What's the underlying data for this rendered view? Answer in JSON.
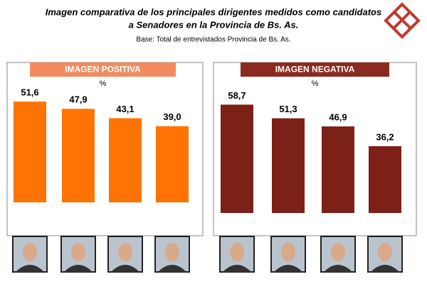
{
  "header": {
    "title": [
      "Imagen comparativa de los principales dirigentes medidos como candidatos",
      "a Senadores en la Provincia de Bs. As."
    ],
    "subtitle": "Base: Total de entrevistados Provincia de Bs. As."
  },
  "chart_data": [
    {
      "type": "bar",
      "title": "IMAGEN POSITIVA",
      "unit": "%",
      "categories": [
        null,
        null,
        null,
        null
      ],
      "values": [
        51.6,
        47.9,
        43.1,
        39.0
      ],
      "value_labels": [
        "51,6",
        "47,9",
        "43,1",
        "39,0"
      ],
      "color": "#ff7304",
      "header_color": "#f28c5e",
      "ylim": [
        0,
        60
      ]
    },
    {
      "type": "bar",
      "title": "IMAGEN NEGATIVA",
      "unit": "%",
      "categories": [
        null,
        null,
        null,
        null
      ],
      "values": [
        58.7,
        51.3,
        46.9,
        36.2
      ],
      "value_labels": [
        "58,7",
        "51,3",
        "46,9",
        "36,2"
      ],
      "color": "#7c2018",
      "header_color": "#8b2a1e",
      "ylim": [
        0,
        60
      ]
    }
  ]
}
